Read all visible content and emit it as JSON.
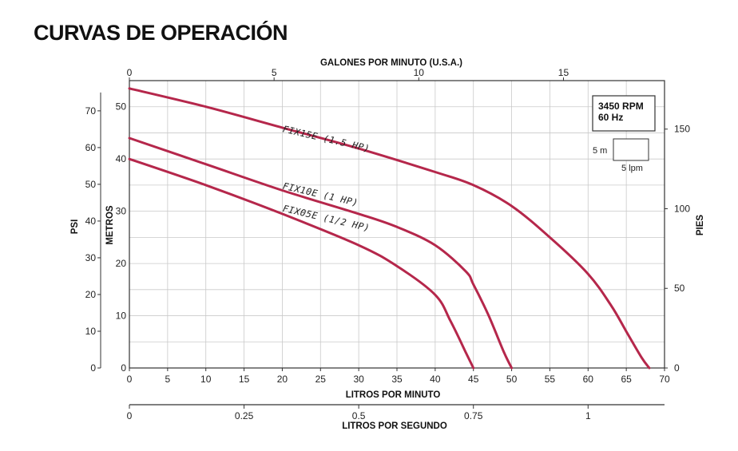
{
  "title": "CURVAS DE OPERACIÓN",
  "chart_data": {
    "type": "line",
    "x_axis": {
      "label": "LITROS POR MINUTO",
      "min": 0,
      "max": 70,
      "ticks": [
        0,
        5,
        10,
        15,
        20,
        25,
        30,
        35,
        40,
        45,
        50,
        55,
        60,
        65,
        70
      ]
    },
    "x2_axis_top": {
      "label": "GALONES POR MINUTO (U.S.A.)",
      "ticks": [
        0,
        5,
        10,
        15
      ]
    },
    "x3_axis_bottom": {
      "label": "LITROS POR SEGUNDO",
      "ticks": [
        "0",
        "0.25",
        "0.5",
        "0.75",
        "1"
      ]
    },
    "y_axis_metros": {
      "label": "METROS",
      "min": 0,
      "max": 55,
      "ticks": [
        0,
        10,
        20,
        30,
        40,
        50
      ]
    },
    "y_axis_psi": {
      "label": "PSI",
      "ticks": [
        0,
        10,
        20,
        30,
        40,
        50,
        60,
        70
      ]
    },
    "y_axis_pies": {
      "label": "PIES",
      "ticks": [
        0,
        50,
        100,
        150
      ]
    },
    "grid": true,
    "legend": {
      "rpm": "3450 RPM",
      "hz": "60 Hz",
      "scale_vertical": "5 m",
      "scale_horizontal": "5 lpm"
    },
    "series": [
      {
        "name": "FIX15E (1.5 HP)",
        "color": "#b5274b",
        "x": [
          0,
          10,
          20,
          30,
          40,
          45,
          50,
          55,
          60,
          63,
          65,
          67,
          68
        ],
        "y": [
          53.5,
          50,
          46,
          42,
          37.5,
          35,
          31,
          25,
          18,
          12,
          7,
          2,
          0
        ]
      },
      {
        "name": "FIX10E (1 HP)",
        "color": "#b5274b",
        "x": [
          0,
          10,
          20,
          30,
          35,
          40,
          44,
          45,
          47,
          49,
          50
        ],
        "y": [
          44,
          39,
          34,
          29.5,
          27,
          23.5,
          18.5,
          16,
          10,
          3,
          0
        ]
      },
      {
        "name": "FIX05E (1/2 HP)",
        "color": "#b5274b",
        "x": [
          0,
          10,
          20,
          30,
          35,
          40,
          42,
          44,
          45
        ],
        "y": [
          40,
          35,
          29.5,
          23.5,
          19.5,
          14,
          9,
          3,
          0
        ]
      }
    ]
  }
}
